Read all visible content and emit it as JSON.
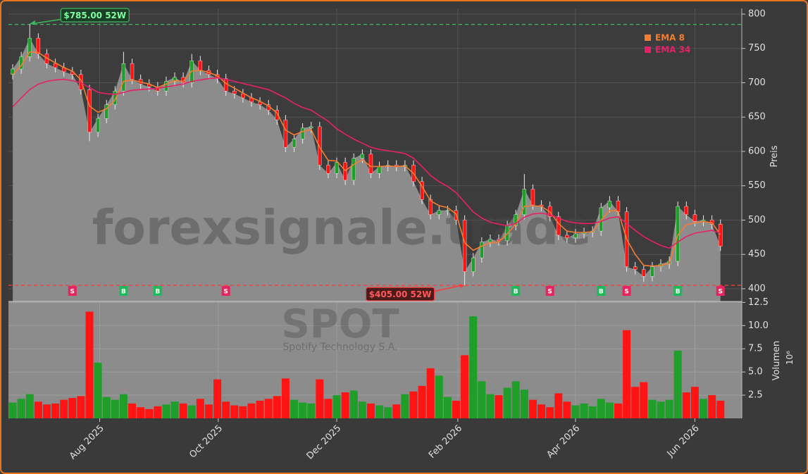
{
  "chart_data": {
    "type": "candlestick",
    "watermark": "forexsignale.trade",
    "symbol": "SPOT",
    "company": "Spotify Technology S.A.",
    "ylabel": "Preis",
    "xlim": [
      -0.5,
      85.5
    ],
    "xticks": [
      {
        "value": 10.2,
        "label": "Aug 2025"
      },
      {
        "value": 24.1,
        "label": "Oct 2025"
      },
      {
        "value": 38,
        "label": "Dec 2025"
      },
      {
        "value": 52.2,
        "label": "Feb 2026"
      },
      {
        "value": 66,
        "label": "Apr 2026"
      },
      {
        "value": 80,
        "label": "Jun 2026"
      }
    ],
    "ylim": [
      381.5,
      808.2
    ],
    "yticks": [
      400,
      450,
      500,
      550,
      600,
      650,
      700,
      750,
      800
    ],
    "grid": true,
    "legend": "upper right",
    "up_color": "#1f9e2a",
    "down_color": "#ff1414",
    "open": [
      712,
      720,
      738,
      765,
      742,
      728,
      722,
      716,
      712,
      690,
      628,
      648,
      668,
      688,
      728,
      705,
      698,
      694,
      688,
      702,
      708,
      700,
      732,
      718,
      712,
      706,
      688,
      684,
      678,
      672,
      668,
      660,
      646,
      606,
      618,
      634,
      636,
      580,
      568,
      584,
      558,
      590,
      596,
      568,
      578,
      580,
      578,
      580,
      556,
      530,
      508,
      514,
      514,
      500,
      425,
      445,
      468,
      472,
      470,
      492,
      508,
      545,
      522,
      520,
      505,
      478,
      474,
      480,
      482,
      484,
      518,
      528,
      512,
      432,
      428,
      418,
      432,
      436,
      440,
      520,
      508,
      498,
      500,
      494
    ],
    "high": [
      727,
      745,
      785,
      772,
      749,
      735,
      729,
      723,
      719,
      697,
      655,
      675,
      695,
      745,
      735,
      712,
      705,
      701,
      709,
      715,
      715,
      742,
      739,
      725,
      719,
      713,
      695,
      691,
      685,
      679,
      675,
      667,
      653,
      625,
      641,
      643,
      643,
      587,
      591,
      591,
      597,
      603,
      603,
      585,
      587,
      587,
      587,
      587,
      563,
      537,
      521,
      521,
      521,
      507,
      452,
      475,
      479,
      479,
      499,
      515,
      567,
      552,
      529,
      527,
      512,
      485,
      487,
      489,
      491,
      525,
      535,
      535,
      519,
      439,
      435,
      439,
      443,
      447,
      527,
      527,
      515,
      507,
      507,
      501
    ],
    "low": [
      705,
      713,
      731,
      735,
      721,
      715,
      709,
      705,
      683,
      615,
      621,
      641,
      661,
      681,
      698,
      691,
      687,
      681,
      681,
      695,
      693,
      693,
      711,
      705,
      699,
      681,
      677,
      671,
      665,
      661,
      653,
      639,
      599,
      599,
      611,
      627,
      573,
      561,
      561,
      551,
      551,
      583,
      561,
      561,
      571,
      571,
      571,
      549,
      523,
      501,
      501,
      507,
      493,
      405,
      418,
      438,
      461,
      463,
      463,
      485,
      501,
      515,
      513,
      498,
      471,
      467,
      467,
      473,
      475,
      477,
      511,
      505,
      425,
      421,
      410,
      411,
      425,
      429,
      433,
      501,
      491,
      491,
      487,
      455
    ],
    "close": [
      720,
      738,
      765,
      742,
      728,
      722,
      716,
      712,
      690,
      628,
      648,
      668,
      688,
      728,
      705,
      698,
      694,
      688,
      702,
      708,
      700,
      732,
      718,
      712,
      706,
      688,
      684,
      678,
      672,
      668,
      660,
      646,
      606,
      618,
      634,
      636,
      580,
      568,
      584,
      558,
      590,
      596,
      568,
      578,
      580,
      578,
      580,
      556,
      530,
      508,
      514,
      514,
      500,
      425,
      445,
      468,
      472,
      470,
      492,
      508,
      545,
      522,
      520,
      505,
      478,
      474,
      480,
      482,
      484,
      518,
      528,
      512,
      432,
      428,
      418,
      432,
      436,
      440,
      520,
      508,
      498,
      500,
      494,
      462
    ],
    "series": [
      {
        "name": "EMA 8",
        "color": "#f57c30",
        "values": [
          712,
          725,
          745,
          744,
          736,
          729,
          722,
          717,
          704,
          666,
          657,
          662,
          675,
          702,
          704,
          701,
          698,
          693,
          698,
          703,
          702,
          717,
          718,
          715,
          710,
          699,
          692,
          685,
          678,
          673,
          666,
          656,
          631,
          624,
          629,
          632,
          606,
          587,
          586,
          572,
          581,
          588,
          578,
          578,
          579,
          578,
          579,
          568,
          549,
          528,
          521,
          518,
          509,
          467,
          456,
          462,
          467,
          468,
          480,
          494,
          520,
          521,
          520,
          512,
          495,
          484,
          482,
          482,
          483,
          500,
          514,
          513,
          472,
          450,
          434,
          433,
          434,
          437,
          478,
          493,
          496,
          498,
          496,
          479
        ]
      },
      {
        "name": "EMA 34",
        "color": "#e8206a",
        "values": [
          665,
          678,
          690,
          698,
          702,
          704,
          705,
          703,
          700,
          693,
          686,
          684,
          683,
          686,
          689,
          690,
          691,
          692,
          694,
          696,
          698,
          702,
          704,
          706,
          707,
          705,
          702,
          699,
          696,
          693,
          690,
          684,
          678,
          670,
          664,
          660,
          652,
          644,
          633,
          625,
          618,
          612,
          606,
          603,
          601,
          599,
          597,
          590,
          578,
          565,
          556,
          549,
          540,
          526,
          512,
          503,
          497,
          494,
          492,
          495,
          504,
          509,
          510,
          508,
          503,
          498,
          496,
          495,
          495,
          498,
          503,
          505,
          495,
          485,
          476,
          469,
          463,
          459,
          468,
          476,
          481,
          483,
          485,
          481
        ]
      }
    ],
    "reference_lines": [
      {
        "value": 785,
        "label": "$785.00 52W",
        "color": "#3cb863",
        "index": 2
      },
      {
        "value": 405,
        "label": "$405.00 52W",
        "color": "#ff3a3a",
        "index": 53
      }
    ],
    "signals": [
      {
        "index": 7,
        "label": "S"
      },
      {
        "index": 13,
        "label": "B"
      },
      {
        "index": 17,
        "label": "B"
      },
      {
        "index": 25,
        "label": "S"
      },
      {
        "index": 59,
        "label": "B"
      },
      {
        "index": 63,
        "label": "S"
      },
      {
        "index": 69,
        "label": "B"
      },
      {
        "index": 72,
        "label": "S"
      },
      {
        "index": 78,
        "label": "B"
      },
      {
        "index": 83,
        "label": "S"
      }
    ],
    "signal_colors": {
      "B": "#1fb85a",
      "S": "#e8245e"
    },
    "volume": {
      "ylabel": "Volumen",
      "scale_label": "10⁶",
      "ylim": [
        0,
        12.6
      ],
      "yticks": [
        2.5,
        {
          "value": 5,
          "label": "5.0"
        },
        7.5,
        {
          "value": 10,
          "label": "10.0"
        },
        12.5
      ],
      "values": [
        1.7,
        2.1,
        2.6,
        1.8,
        1.5,
        1.6,
        2.0,
        2.2,
        2.4,
        11.5,
        6.0,
        2.3,
        2.0,
        2.6,
        1.6,
        1.2,
        1.0,
        1.3,
        1.5,
        1.8,
        1.6,
        1.4,
        2.1,
        1.5,
        4.2,
        1.8,
        1.4,
        1.3,
        1.6,
        1.9,
        2.1,
        2.4,
        4.3,
        2.0,
        1.7,
        1.6,
        4.2,
        2.1,
        2.5,
        2.8,
        3.0,
        1.8,
        1.6,
        1.4,
        1.2,
        1.5,
        2.6,
        2.9,
        3.5,
        5.4,
        4.6,
        2.3,
        1.9,
        6.8,
        11.0,
        4.0,
        2.6,
        2.5,
        3.3,
        4.0,
        3.1,
        2.0,
        1.5,
        1.2,
        2.7,
        1.8,
        1.4,
        1.6,
        1.3,
        2.1,
        1.7,
        1.6,
        9.5,
        3.4,
        3.9,
        2.0,
        1.8,
        2.0,
        7.3,
        2.8,
        3.4,
        2.1,
        2.5,
        1.9
      ]
    }
  }
}
